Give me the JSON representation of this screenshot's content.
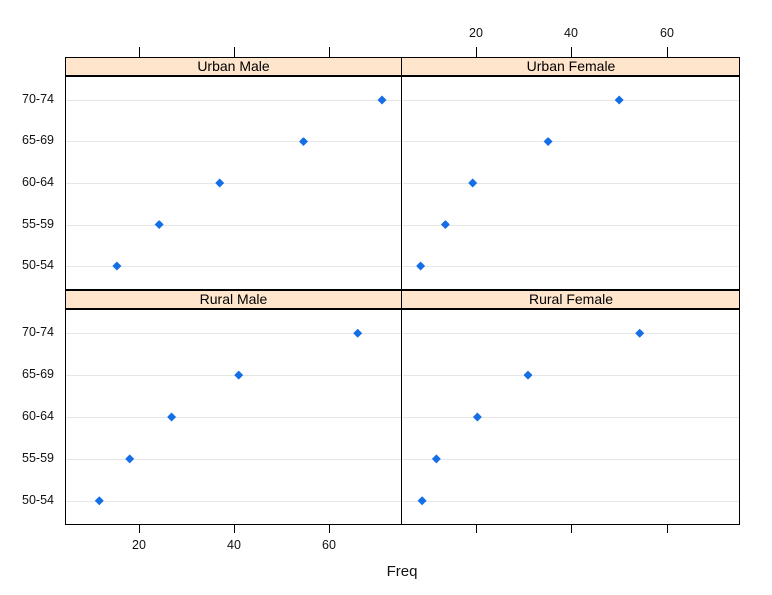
{
  "chart_data": {
    "type": "scatter",
    "variant": "trellis-dotplot",
    "title": "",
    "xlabel": "Freq",
    "ylabel": "",
    "categories": [
      "70-74",
      "65-69",
      "60-64",
      "55-59",
      "50-54"
    ],
    "x_ticks": [
      20,
      40,
      60
    ],
    "x_tick_labels": [
      "20",
      "40",
      "60"
    ],
    "xlim": [
      4.5,
      75.3
    ],
    "grid": "one light horizontal line per category",
    "legend": "none",
    "panels": [
      {
        "title": "Urban Male",
        "row": 0,
        "col": 0,
        "values": [
          71.1,
          54.6,
          37.0,
          24.3,
          15.4
        ]
      },
      {
        "title": "Urban Female",
        "row": 0,
        "col": 1,
        "values": [
          50.0,
          35.1,
          19.3,
          13.6,
          8.4
        ]
      },
      {
        "title": "Rural Male",
        "row": 1,
        "col": 0,
        "values": [
          66.0,
          41.0,
          26.9,
          18.1,
          11.7
        ]
      },
      {
        "title": "Rural Female",
        "row": 1,
        "col": 1,
        "values": [
          54.3,
          30.9,
          20.3,
          11.7,
          8.7
        ]
      }
    ],
    "values_note": "values are ordered top-to-bottom matching categories (70-74 first)",
    "axis_label_sides": {
      "top_labels": "right column only",
      "bottom_labels": "left column only",
      "left_labels": "both rows",
      "right_labels": "none"
    },
    "colors": {
      "point": "#146ee6",
      "strip_bg": "#ffe5cc",
      "strip_border": "#000000",
      "panel_border": "#000000",
      "gridline": "#e6e6e6",
      "text": "#111111",
      "background": "#ffffff"
    }
  }
}
